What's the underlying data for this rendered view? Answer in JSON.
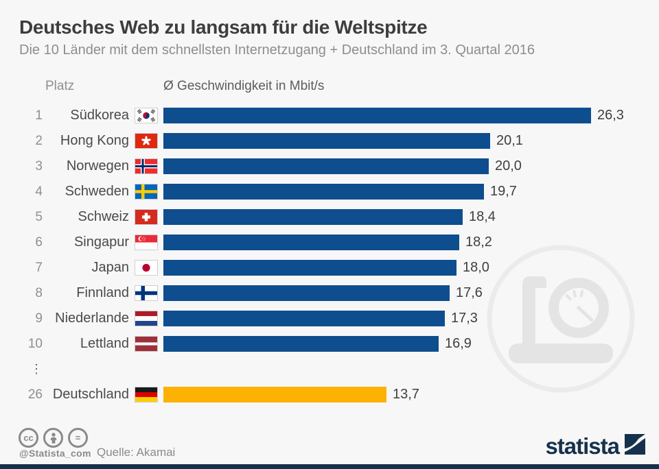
{
  "page": {
    "background": "#f7f7f7"
  },
  "header": {
    "title": "Deutsches Web zu langsam für die Weltspitze",
    "subtitle": "Die 10 Länder mit dem schnellsten Internetzugang + Deutschland im 3. Quartal 2016"
  },
  "columns": {
    "rank_label": "Platz",
    "value_label": "Ø Geschwindigkeit in Mbit/s"
  },
  "colors": {
    "bar": "#0e4e8e",
    "highlight": "#fcb103",
    "navy": "#15314b"
  },
  "chart_data": {
    "type": "bar",
    "orientation": "horizontal",
    "title": "Deutsches Web zu langsam für die Weltspitze",
    "xlabel": "Ø Geschwindigkeit in Mbit/s",
    "unit": "Mbit/s",
    "xlim": [
      0,
      27
    ],
    "grid": false,
    "categories": [
      "Südkorea",
      "Hong Kong",
      "Norwegen",
      "Schweden",
      "Schweiz",
      "Singapur",
      "Japan",
      "Finnland",
      "Niederlande",
      "Lettland",
      "Deutschland"
    ],
    "values": [
      26.3,
      20.1,
      20.0,
      19.7,
      18.4,
      18.2,
      18.0,
      17.6,
      17.3,
      16.9,
      13.7
    ],
    "separator_symbol": "⋮",
    "rows": [
      {
        "rank": "1",
        "country": "Südkorea",
        "flag": "kr",
        "value": 26.3,
        "value_label": "26,3",
        "highlight": false
      },
      {
        "rank": "2",
        "country": "Hong Kong",
        "flag": "hk",
        "value": 20.1,
        "value_label": "20,1",
        "highlight": false
      },
      {
        "rank": "3",
        "country": "Norwegen",
        "flag": "no",
        "value": 20.0,
        "value_label": "20,0",
        "highlight": false
      },
      {
        "rank": "4",
        "country": "Schweden",
        "flag": "se",
        "value": 19.7,
        "value_label": "19,7",
        "highlight": false
      },
      {
        "rank": "5",
        "country": "Schweiz",
        "flag": "ch",
        "value": 18.4,
        "value_label": "18,4",
        "highlight": false
      },
      {
        "rank": "6",
        "country": "Singapur",
        "flag": "sg",
        "value": 18.2,
        "value_label": "18,2",
        "highlight": false
      },
      {
        "rank": "7",
        "country": "Japan",
        "flag": "jp",
        "value": 18.0,
        "value_label": "18,0",
        "highlight": false
      },
      {
        "rank": "8",
        "country": "Finnland",
        "flag": "fi",
        "value": 17.6,
        "value_label": "17,6",
        "highlight": false
      },
      {
        "rank": "9",
        "country": "Niederlande",
        "flag": "nl",
        "value": 17.3,
        "value_label": "17,3",
        "highlight": false
      },
      {
        "rank": "10",
        "country": "Lettland",
        "flag": "lv",
        "value": 16.9,
        "value_label": "16,9",
        "highlight": false
      },
      {
        "rank": "26",
        "country": "Deutschland",
        "flag": "de",
        "value": 13.7,
        "value_label": "13,7",
        "highlight": true,
        "gap_before": true
      }
    ]
  },
  "footer": {
    "cc_label": "cc",
    "nd_label": "=",
    "handle": "@Statista_com",
    "source": "Quelle: Akamai",
    "brand": "statista"
  }
}
